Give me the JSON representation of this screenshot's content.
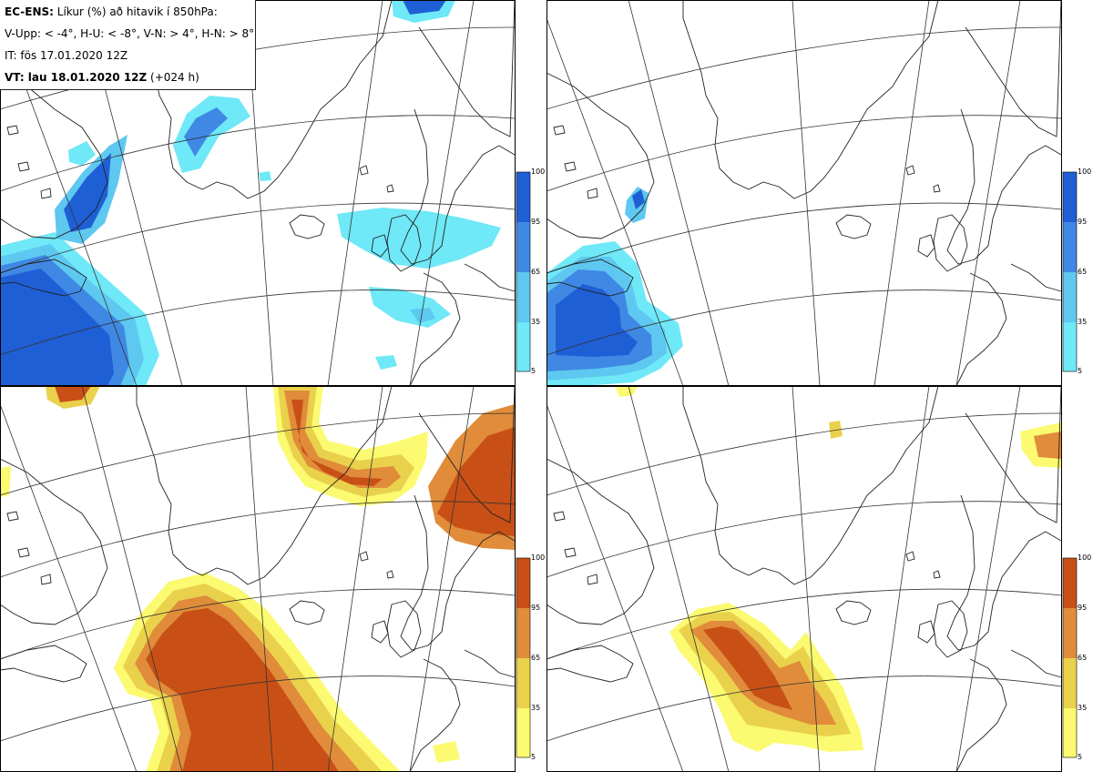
{
  "header": {
    "title_bold": "EC-ENS:",
    "title_rest": "Líkur (%) að hitavik í 850hPa:",
    "thresholds": "V-Upp: < -4°, H-U: < -8°, V-N: > 4°, H-N: > 8°",
    "initial_time": "IT: fös 17.01.2020 12Z",
    "valid_time_bold": "VT: lau 18.01.2020 12Z",
    "valid_time_rest": "(+024 h)"
  },
  "colorbar": {
    "ticks": [
      "100",
      "95",
      "65",
      "35",
      "5"
    ],
    "cold_colors": [
      "#1f5fd6",
      "#3f88e4",
      "#5ec8f0",
      "#6fe8f7"
    ],
    "warm_colors": [
      "#c85016",
      "#e08c3a",
      "#ead14c",
      "#fbfa70"
    ]
  },
  "panels": [
    {
      "id": "V-Upp",
      "threshold": "< -4°",
      "scheme": "cold"
    },
    {
      "id": "H-U",
      "threshold": "< -8°",
      "scheme": "cold"
    },
    {
      "id": "V-N",
      "threshold": "> 4°",
      "scheme": "warm"
    },
    {
      "id": "H-N",
      "threshold": "> 8°",
      "scheme": "warm"
    }
  ]
}
